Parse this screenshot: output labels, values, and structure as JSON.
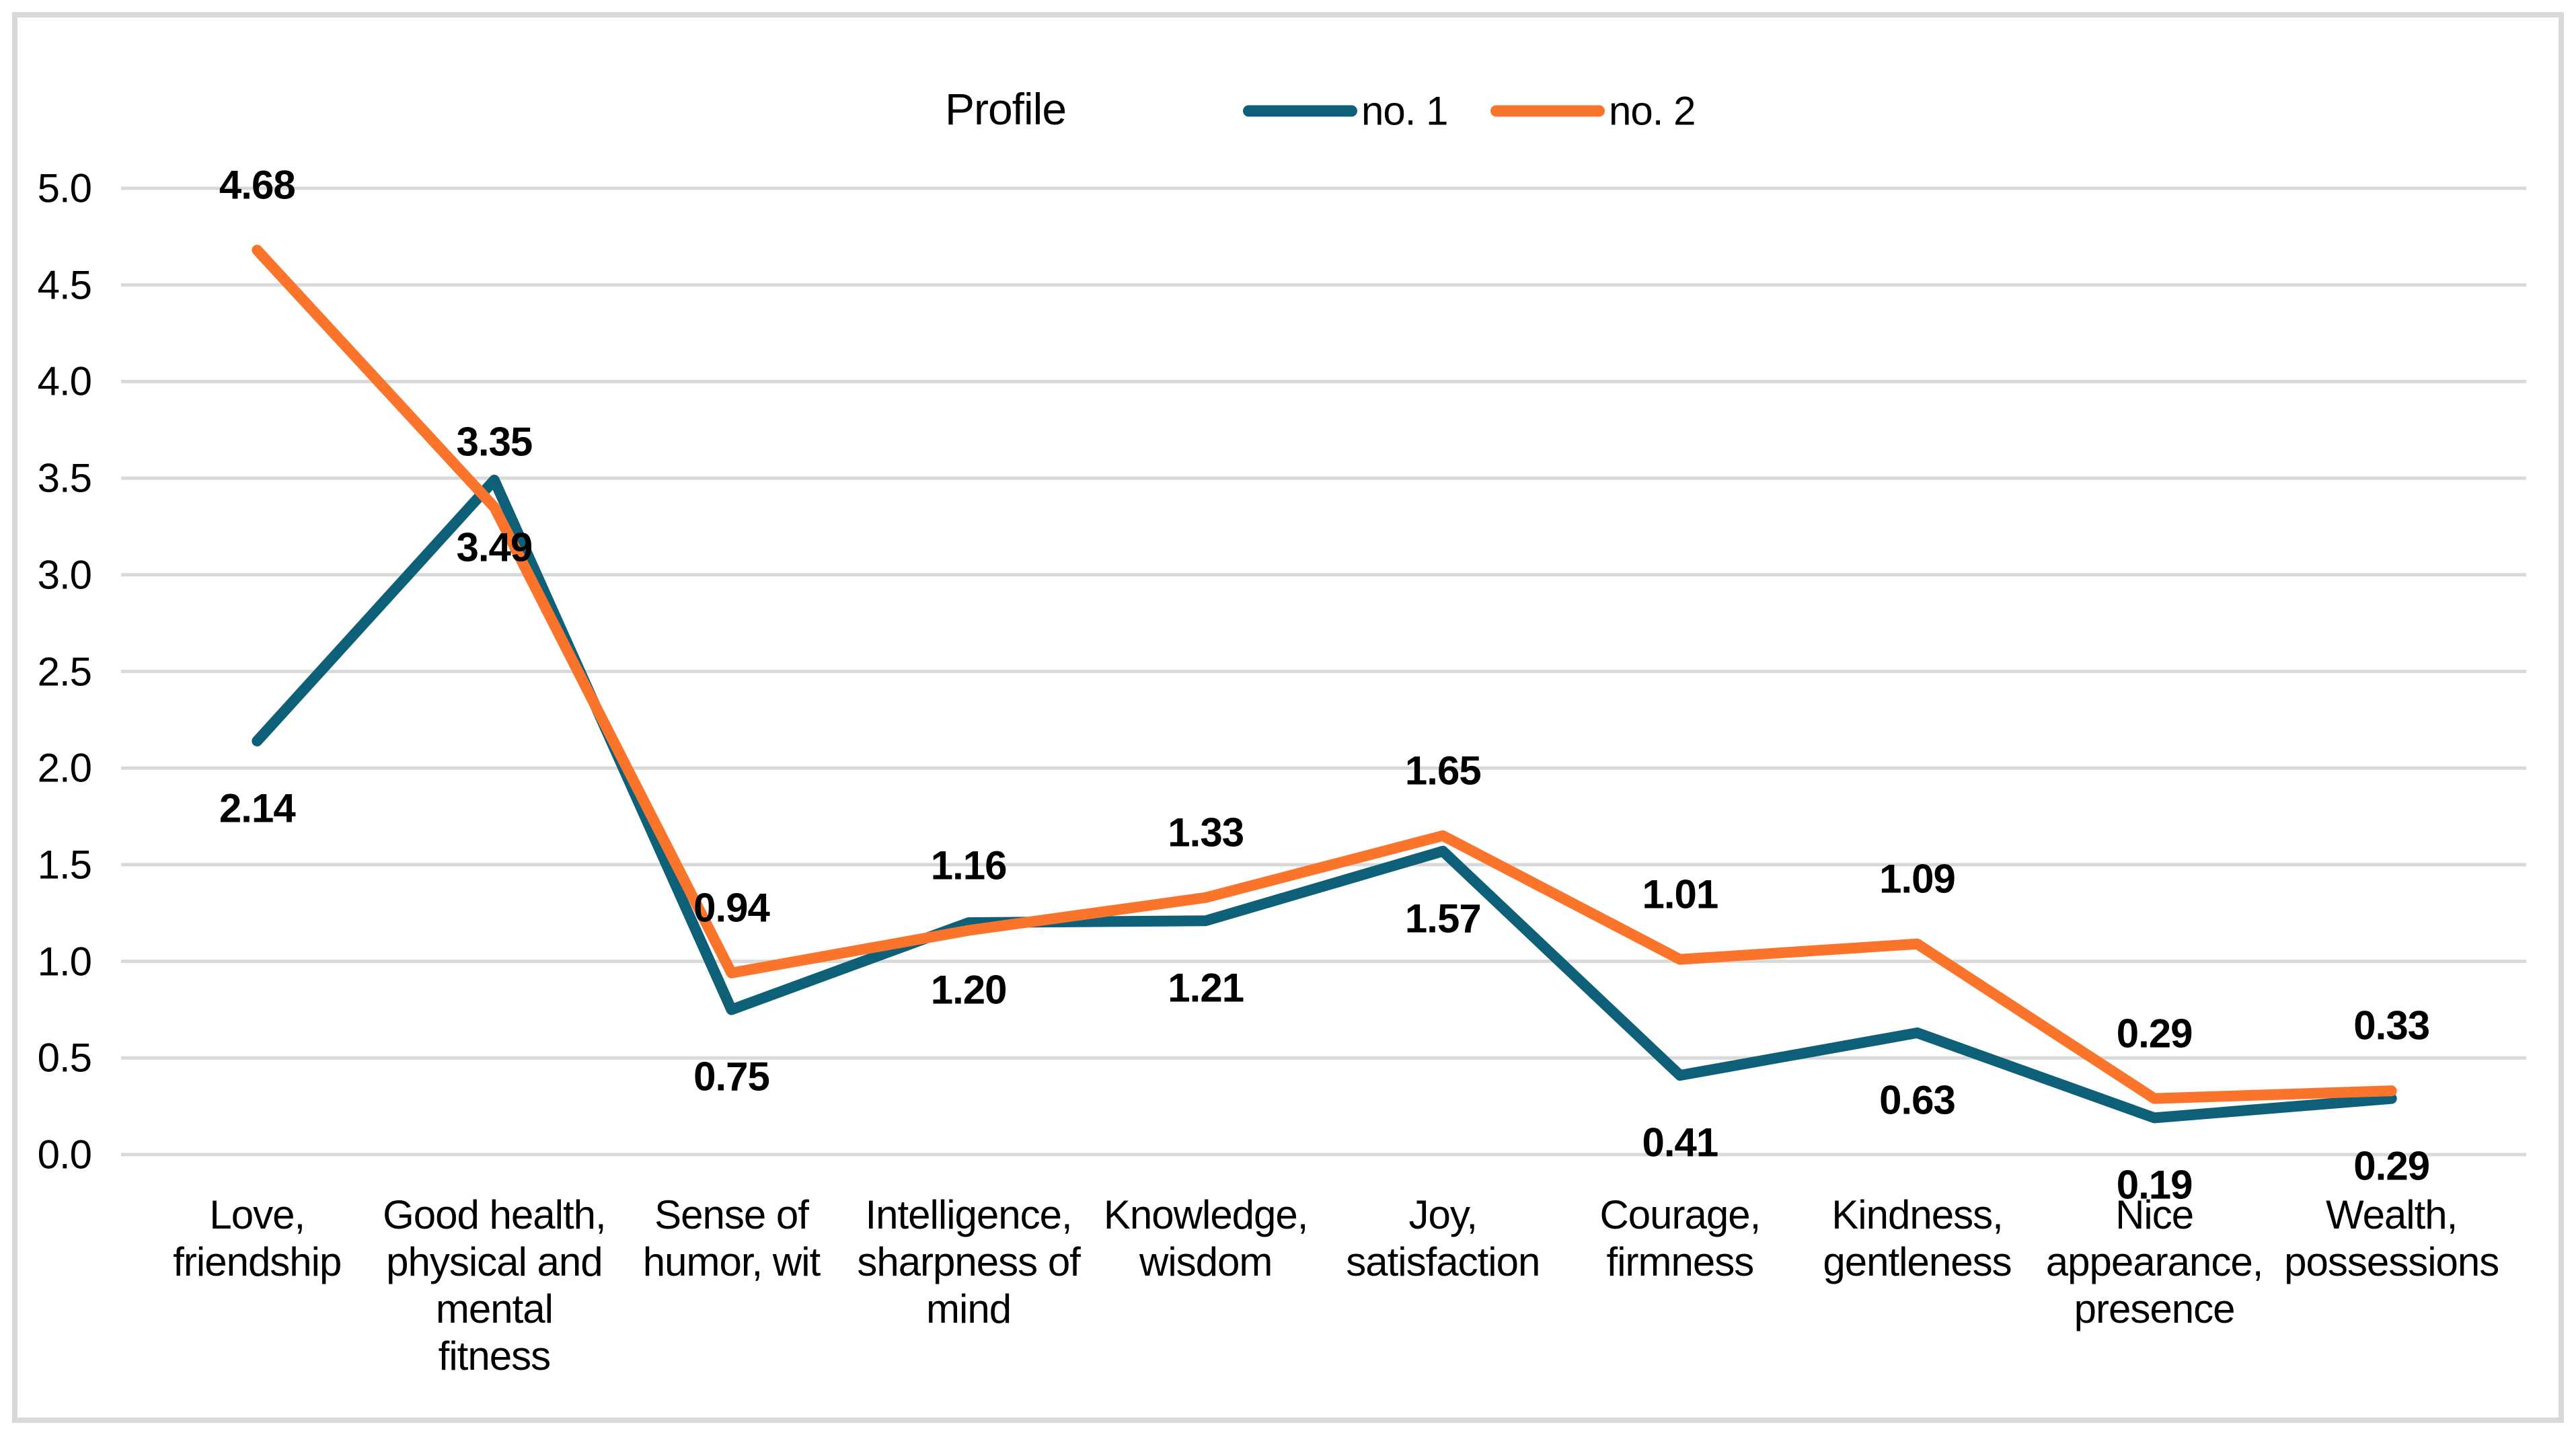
{
  "chart_data": {
    "type": "line",
    "title": "Profile",
    "categories": [
      "Love, friendship",
      "Good health, physical and mental fitness",
      "Sense of humor, wit",
      "Intelligence, sharpness of mind",
      "Knowledge, wisdom",
      "Joy, satisfaction",
      "Courage, firmness",
      "Kindness, gentleness",
      "Nice appearance, presence",
      "Wealth, possessions"
    ],
    "category_lines": [
      [
        "Love,",
        "friendship"
      ],
      [
        "Good health,",
        "physical and",
        "mental",
        "fitness"
      ],
      [
        "Sense of",
        "humor, wit"
      ],
      [
        "Intelligence,",
        "sharpness of",
        "mind"
      ],
      [
        "Knowledge,",
        "wisdom"
      ],
      [
        "Joy,",
        "satisfaction"
      ],
      [
        "Courage,",
        "firmness"
      ],
      [
        "Kindness,",
        "gentleness"
      ],
      [
        "Nice",
        "appearance,",
        "presence"
      ],
      [
        "Wealth,",
        "possessions"
      ]
    ],
    "series": [
      {
        "name": "no. 1",
        "color": "#0E6078",
        "values": [
          2.14,
          3.49,
          0.75,
          1.2,
          1.21,
          1.57,
          0.41,
          0.63,
          0.19,
          0.29
        ],
        "labels": [
          "2.14",
          "3.49",
          "0.75",
          "1.20",
          "1.21",
          "1.57",
          "0.41",
          "0.63",
          "0.19",
          "0.29"
        ],
        "label_position": "below"
      },
      {
        "name": "no. 2",
        "color": "#FB742B",
        "values": [
          4.68,
          3.35,
          0.94,
          1.16,
          1.33,
          1.65,
          1.01,
          1.09,
          0.29,
          0.33
        ],
        "labels": [
          "4.68",
          "3.35",
          "0.94",
          "1.16",
          "1.33",
          "1.65",
          "1.01",
          "1.09",
          "0.29",
          "0.33"
        ],
        "label_position": "above"
      }
    ],
    "y_axis": {
      "min": 0.0,
      "max": 5.0,
      "step": 0.5,
      "tick_labels": [
        "5.0",
        "4.5",
        "4.0",
        "3.5",
        "3.0",
        "2.5",
        "2.0",
        "1.5",
        "1.0",
        "0.5",
        "0.0"
      ]
    },
    "grid": true,
    "legend_position": "top",
    "colors": {
      "gridline": "#D9D9D9",
      "frame": "#D9D9D9",
      "text": "#000000",
      "background": "#FFFFFF"
    }
  }
}
